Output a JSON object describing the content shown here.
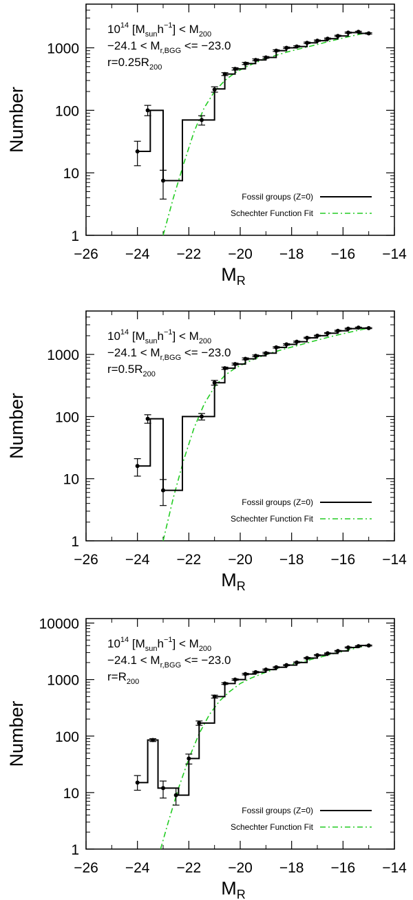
{
  "chart_data": [
    {
      "type": "line",
      "panel": "top",
      "xlabel": "M",
      "xlabel_sub": "R",
      "ylabel": "Number",
      "xlim": [
        -26,
        -14
      ],
      "ylim": [
        1,
        5000
      ],
      "yscale": "log",
      "x_ticks": [
        -26,
        -24,
        -22,
        -20,
        -18,
        -16,
        -14
      ],
      "x_tick_labels": [
        "−26",
        "−24",
        "−22",
        "−20",
        "−18",
        "−16",
        "−14"
      ],
      "y_ticks": [
        1,
        10,
        100,
        1000
      ],
      "y_tick_labels": [
        "1",
        "10",
        "100",
        "1000"
      ],
      "annotation": {
        "line1_base": "10",
        "line1_sup": "14",
        "line1_mid": "  [M",
        "line1_sub1": "sun",
        "line1_h": "h",
        "line1_sup2": "−1",
        "line1_end": "] < M",
        "line1_sub2": "200",
        "line2_main": "−24.1 < M",
        "line2_sub": "r,BGG",
        "line2_end": " <= −23.0",
        "line3_main": "r=0.25R",
        "line3_sub": "200"
      },
      "legend": {
        "placement": "lower-right",
        "series1": "Fossil groups (Z=0)",
        "series2": "Schechter Function Fit"
      },
      "series": [
        {
          "name": "Fossil groups (Z=0)",
          "style": "step",
          "color": "#000000",
          "bin_edges": [
            -24.0,
            -23.5,
            -23.0,
            -22.25,
            -21.5,
            -21.0,
            -20.6,
            -20.2,
            -19.8,
            -19.4,
            -19.0,
            -18.6,
            -18.2,
            -17.8,
            -17.4,
            -17.0,
            -16.6,
            -16.2,
            -15.8,
            -15.4,
            -15.0
          ],
          "values": [
            22,
            100,
            7.5,
            70,
            70,
            220,
            380,
            460,
            560,
            640,
            700,
            900,
            1000,
            1050,
            1200,
            1300,
            1400,
            1550,
            1750,
            1700
          ],
          "points_x": [
            -24.0,
            -23.6,
            -23.0,
            -21.5,
            -21.0,
            -20.6,
            -20.2,
            -19.8,
            -19.4,
            -19.0,
            -18.6,
            -18.2,
            -17.8,
            -17.4,
            -17.0,
            -16.6,
            -16.2,
            -15.8,
            -15.4,
            -15.0
          ],
          "points_y": [
            22,
            100,
            7.5,
            70,
            215,
            380,
            460,
            560,
            640,
            700,
            900,
            1000,
            1050,
            1200,
            1300,
            1400,
            1550,
            1750,
            1800,
            1700
          ],
          "err_lo": [
            13,
            82,
            3.8,
            58,
            195,
            360,
            440,
            540,
            620,
            680,
            875,
            975,
            1025,
            1170,
            1270,
            1370,
            1520,
            1710,
            1760,
            1660
          ],
          "err_hi": [
            32,
            120,
            11,
            82,
            238,
            400,
            480,
            585,
            665,
            725,
            930,
            1030,
            1080,
            1235,
            1335,
            1435,
            1590,
            1790,
            1840,
            1740
          ]
        },
        {
          "name": "Schechter Function Fit",
          "style": "dashdot",
          "color": "#22cc22",
          "x": [
            -23.0,
            -22.6,
            -22.2,
            -21.8,
            -21.4,
            -21.0,
            -20.6,
            -20.2,
            -19.8,
            -19.4,
            -19.0,
            -18.6,
            -18.2,
            -17.8,
            -17.4,
            -17.0,
            -16.6,
            -16.2,
            -15.8,
            -15.4,
            -15.0
          ],
          "y": [
            1,
            4,
            14,
            45,
            110,
            200,
            300,
            400,
            490,
            580,
            670,
            760,
            850,
            940,
            1030,
            1130,
            1250,
            1370,
            1500,
            1630,
            1780
          ]
        }
      ]
    },
    {
      "type": "line",
      "panel": "middle",
      "xlabel": "M",
      "xlabel_sub": "R",
      "ylabel": "Number",
      "xlim": [
        -26,
        -14
      ],
      "ylim": [
        1,
        5000
      ],
      "yscale": "log",
      "x_ticks": [
        -26,
        -24,
        -22,
        -20,
        -18,
        -16,
        -14
      ],
      "x_tick_labels": [
        "−26",
        "−24",
        "−22",
        "−20",
        "−18",
        "−16",
        "−14"
      ],
      "y_ticks": [
        1,
        10,
        100,
        1000
      ],
      "y_tick_labels": [
        "1",
        "10",
        "100",
        "1000"
      ],
      "annotation": {
        "line1_base": "10",
        "line1_sup": "14",
        "line1_mid": "  [M",
        "line1_sub1": "sun",
        "line1_h": "h",
        "line1_sup2": "−1",
        "line1_end": "] < M",
        "line1_sub2": "200",
        "line2_main": "−24.1 < M",
        "line2_sub": "r,BGG",
        "line2_end": " <= −23.0",
        "line3_main": "r=0.5R",
        "line3_sub": "200"
      },
      "legend": {
        "placement": "lower-right",
        "series1": "Fossil groups (Z=0)",
        "series2": "Schechter Function Fit"
      },
      "series": [
        {
          "name": "Fossil groups (Z=0)",
          "style": "step",
          "color": "#000000",
          "bin_edges": [
            -24.0,
            -23.5,
            -23.0,
            -22.25,
            -21.5,
            -21.0,
            -20.6,
            -20.2,
            -19.8,
            -19.4,
            -19.0,
            -18.6,
            -18.2,
            -17.8,
            -17.4,
            -17.0,
            -16.6,
            -16.2,
            -15.8,
            -15.4,
            -15.0
          ],
          "values": [
            16,
            92,
            6.5,
            100,
            100,
            350,
            600,
            700,
            850,
            950,
            1050,
            1300,
            1450,
            1600,
            1850,
            2000,
            2200,
            2400,
            2600,
            2650
          ],
          "points_x": [
            -24.0,
            -23.6,
            -23.0,
            -21.5,
            -21.0,
            -20.6,
            -20.2,
            -19.8,
            -19.4,
            -19.0,
            -18.6,
            -18.2,
            -17.8,
            -17.4,
            -17.0,
            -16.6,
            -16.2,
            -15.8,
            -15.4,
            -15.0
          ],
          "points_y": [
            16,
            92,
            6.5,
            100,
            350,
            600,
            700,
            850,
            950,
            1050,
            1300,
            1450,
            1600,
            1850,
            2000,
            2200,
            2400,
            2600,
            2700,
            2650
          ],
          "err_lo": [
            11,
            78,
            3.7,
            88,
            320,
            575,
            675,
            820,
            920,
            1020,
            1265,
            1410,
            1560,
            1810,
            1960,
            2160,
            2350,
            2550,
            2650,
            2600
          ],
          "err_hi": [
            21,
            107,
            9.7,
            112,
            382,
            625,
            725,
            880,
            980,
            1080,
            1335,
            1490,
            1640,
            1890,
            2040,
            2240,
            2450,
            2650,
            2750,
            2700
          ]
        },
        {
          "name": "Schechter Function Fit",
          "style": "dashdot",
          "color": "#22cc22",
          "x": [
            -23.0,
            -22.6,
            -22.2,
            -21.8,
            -21.4,
            -21.0,
            -20.6,
            -20.2,
            -19.8,
            -19.4,
            -19.0,
            -18.6,
            -18.2,
            -17.8,
            -17.4,
            -17.0,
            -16.6,
            -16.2,
            -15.8,
            -15.4,
            -15.0
          ],
          "y": [
            1,
            5,
            20,
            65,
            160,
            300,
            460,
            600,
            730,
            860,
            990,
            1120,
            1250,
            1380,
            1530,
            1700,
            1880,
            2060,
            2250,
            2450,
            2650
          ]
        }
      ]
    },
    {
      "type": "line",
      "panel": "bottom",
      "xlabel": "M",
      "xlabel_sub": "R",
      "ylabel": "Number",
      "xlim": [
        -26,
        -14
      ],
      "ylim": [
        1,
        12000
      ],
      "yscale": "log",
      "x_ticks": [
        -26,
        -24,
        -22,
        -20,
        -18,
        -16,
        -14
      ],
      "x_tick_labels": [
        "−26",
        "−24",
        "−22",
        "−20",
        "−18",
        "−16",
        "−14"
      ],
      "y_ticks": [
        1,
        10,
        100,
        1000,
        10000
      ],
      "y_tick_labels": [
        "1",
        "10",
        "100",
        "1000",
        "10000"
      ],
      "annotation": {
        "line1_base": "10",
        "line1_sup": "14",
        "line1_mid": "  [M",
        "line1_sub1": "sun",
        "line1_h": "h",
        "line1_sup2": "−1",
        "line1_end": "] < M",
        "line1_sub2": "200",
        "line2_main": "−24.1 < M",
        "line2_sub": "r,BGG",
        "line2_end": " <= −23.0",
        "line3_main": "r=R",
        "line3_sub": "200"
      },
      "legend": {
        "placement": "lower-right",
        "series1": "Fossil groups (Z=0)",
        "series2": "Schechter Function Fit"
      },
      "series": [
        {
          "name": "Fossil groups (Z=0)",
          "style": "step",
          "color": "#000000",
          "bin_edges": [
            -24.0,
            -23.6,
            -23.2,
            -22.8,
            -22.4,
            -22.0,
            -21.6,
            -21.0,
            -20.6,
            -20.2,
            -19.8,
            -19.4,
            -19.0,
            -18.6,
            -18.2,
            -17.8,
            -17.4,
            -17.0,
            -16.6,
            -16.2,
            -15.8,
            -15.4,
            -15.0
          ],
          "values": [
            15,
            85,
            12,
            12,
            9,
            40,
            170,
            500,
            850,
            1000,
            1250,
            1350,
            1500,
            1650,
            1800,
            2000,
            2400,
            2700,
            2900,
            3200,
            3700,
            4000
          ],
          "points_x": [
            -24.0,
            -23.4,
            -23.0,
            -22.5,
            -22.0,
            -21.6,
            -21.0,
            -20.6,
            -20.2,
            -19.8,
            -19.4,
            -19.0,
            -18.6,
            -18.2,
            -17.8,
            -17.4,
            -17.0,
            -16.6,
            -16.2,
            -15.8,
            -15.4,
            -15.0
          ],
          "points_y": [
            15,
            85,
            12,
            9,
            40,
            170,
            500,
            850,
            1000,
            1250,
            1350,
            1500,
            1650,
            1800,
            2000,
            2400,
            2700,
            2900,
            3200,
            3700,
            3900,
            4000
          ],
          "err_lo": [
            11,
            80,
            8,
            6,
            32,
            155,
            470,
            820,
            970,
            1210,
            1310,
            1460,
            1610,
            1760,
            1950,
            2340,
            2640,
            2840,
            3130,
            3620,
            3820,
            3920
          ],
          "err_hi": [
            20,
            90,
            16,
            12,
            48,
            185,
            530,
            880,
            1030,
            1290,
            1390,
            1540,
            1690,
            1840,
            2050,
            2460,
            2760,
            2960,
            3270,
            3780,
            3980,
            4080
          ]
        },
        {
          "name": "Schechter Function Fit",
          "style": "dashdot",
          "color": "#22cc22",
          "x": [
            -23.1,
            -22.8,
            -22.4,
            -22.0,
            -21.6,
            -21.2,
            -20.8,
            -20.4,
            -20.0,
            -19.6,
            -19.2,
            -18.8,
            -18.4,
            -18.0,
            -17.6,
            -17.2,
            -16.8,
            -16.4,
            -16.0,
            -15.6,
            -15.2,
            -15.0
          ],
          "y": [
            1,
            3,
            12,
            40,
            110,
            240,
            420,
            620,
            850,
            1050,
            1250,
            1450,
            1650,
            1850,
            2050,
            2300,
            2550,
            2850,
            3150,
            3500,
            3900,
            4100
          ]
        }
      ]
    }
  ]
}
